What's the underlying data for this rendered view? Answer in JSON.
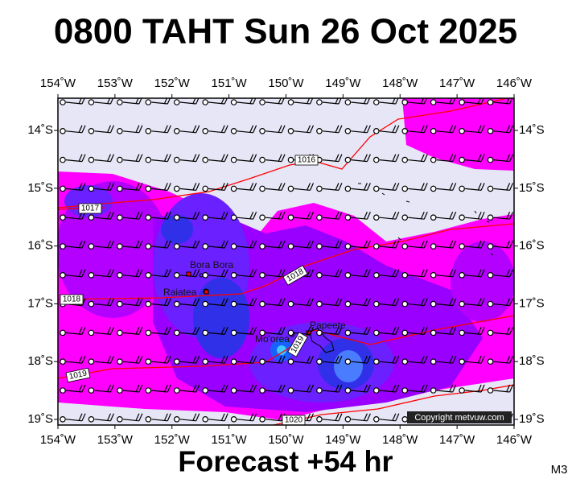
{
  "title": "0800 TAHT Sun 26 Oct 2025",
  "footer": "Forecast +54 hr",
  "corner_label": "M3",
  "copyright": "Copyright metvuw.com",
  "lon_labels": [
    "154˚W",
    "153˚W",
    "152˚W",
    "151˚W",
    "150˚W",
    "149˚W",
    "148˚W",
    "147˚W",
    "146˚W"
  ],
  "lat_labels": [
    "14˚S",
    "15˚S",
    "16˚S",
    "17˚S",
    "18˚S",
    "19˚S"
  ],
  "places": [
    "Bora Bora",
    "Raiatea",
    "Mo'orea",
    "Papeete"
  ],
  "isobar_labels": [
    "1016",
    "1017",
    "1018",
    "1018",
    "1019",
    "1019",
    "1020"
  ]
}
